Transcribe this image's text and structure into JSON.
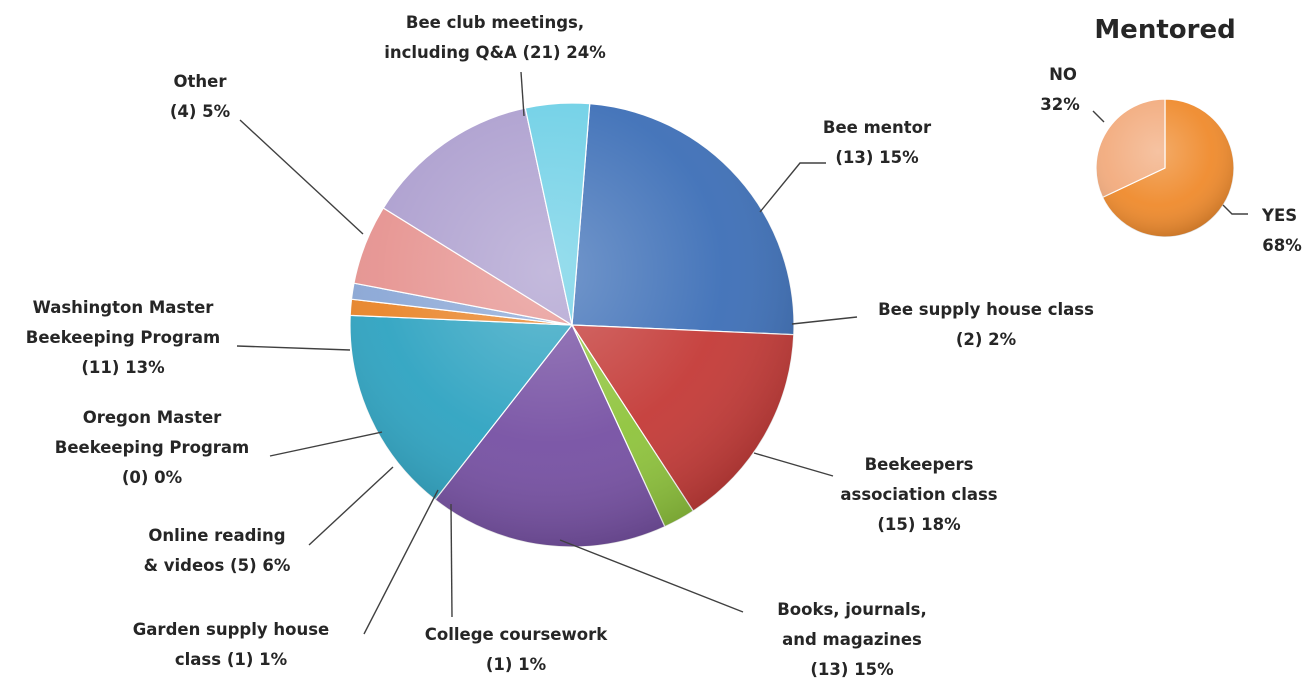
{
  "chart_data": [
    {
      "type": "pie",
      "title": "",
      "slices": [
        {
          "label_lines": [
            "Bee club meetings,",
            "including Q&A  (21) 24%"
          ],
          "count": 21,
          "percent": 24,
          "color": "#3d6fb7"
        },
        {
          "label_lines": [
            "Bee mentor",
            "(13) 15%"
          ],
          "count": 13,
          "percent": 15,
          "color": "#c43a37"
        },
        {
          "label_lines": [
            "Bee supply house class",
            "(2) 2%"
          ],
          "count": 2,
          "percent": 2,
          "color": "#8fc43c"
        },
        {
          "label_lines": [
            "Beekeepers",
            "association class",
            "(15) 18%"
          ],
          "count": 15,
          "percent": 18,
          "color": "#7650a3"
        },
        {
          "label_lines": [
            "Books, journals,",
            "and magazines",
            "(13) 15%"
          ],
          "count": 13,
          "percent": 15,
          "color": "#2ea3c1"
        },
        {
          "label_lines": [
            "College coursework",
            "(1) 1%"
          ],
          "count": 1,
          "percent": 1,
          "color": "#e98428"
        },
        {
          "label_lines": [
            "Garden supply house",
            "class  (1) 1%"
          ],
          "count": 1,
          "percent": 1,
          "color": "#8aa7d6"
        },
        {
          "label_lines": [
            "Online reading",
            "& videos  (5) 6%"
          ],
          "count": 5,
          "percent": 6,
          "color": "#e69390"
        },
        {
          "label_lines": [
            "Oregon Master",
            "Beekeeping Program",
            "(0) 0%"
          ],
          "count": 0,
          "percent": 0,
          "color": "#c9dd9b"
        },
        {
          "label_lines": [
            "Washington Master",
            "Beekeeping Program",
            "(11) 13%"
          ],
          "count": 11,
          "percent": 13,
          "color": "#ad9fcf"
        },
        {
          "label_lines": [
            "Other",
            "(4) 5%"
          ],
          "count": 4,
          "percent": 5,
          "color": "#6fd0e6"
        }
      ]
    },
    {
      "type": "pie",
      "title": "Mentored",
      "slices": [
        {
          "label_lines": [
            "YES",
            "68%"
          ],
          "percent": 68,
          "color": "#ef8a2c"
        },
        {
          "label_lines": [
            "NO",
            "32%"
          ],
          "percent": 32,
          "color": "#f2ab7d"
        }
      ]
    }
  ]
}
